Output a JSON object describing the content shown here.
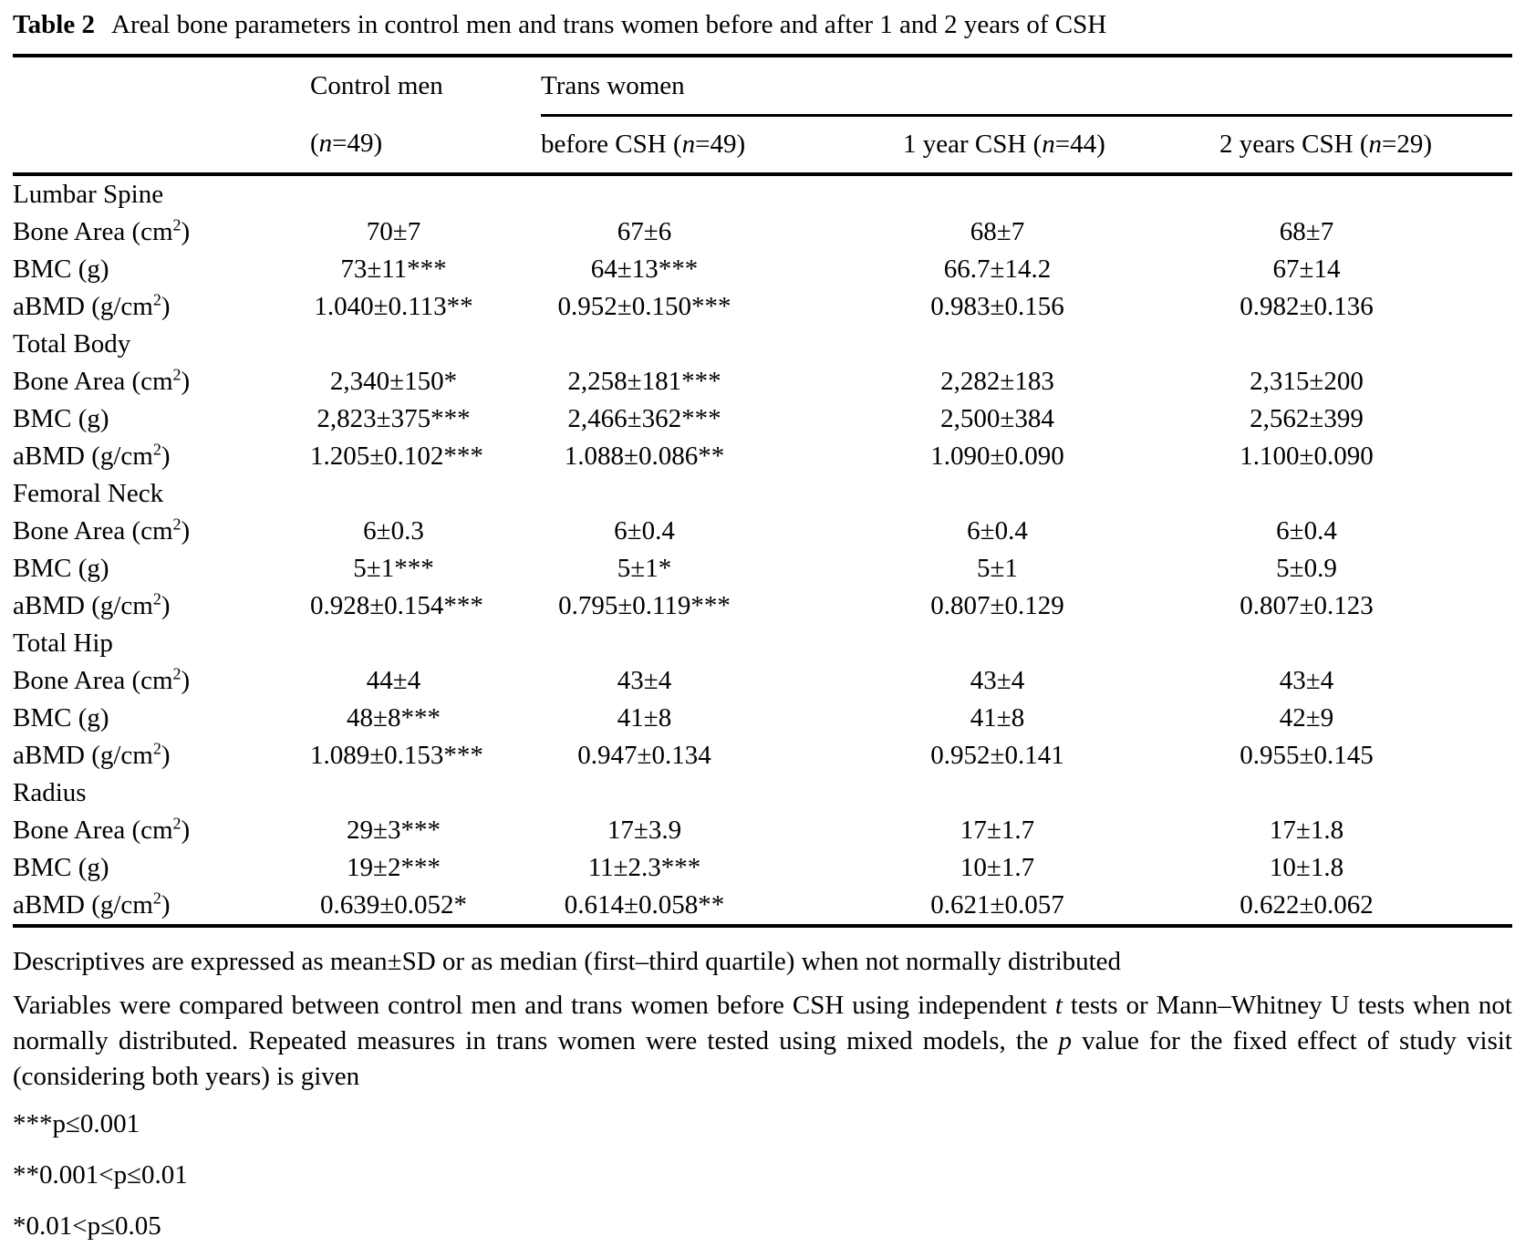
{
  "table_caption": {
    "label": "Table 2",
    "text": "Areal bone parameters in control men and trans women before and after 1 and 2 years of CSH"
  },
  "header": {
    "control_group": "Control men",
    "trans_group": "Trans women",
    "subheaders": [
      {
        "pre": "(",
        "italic": "n",
        "post": "=49)"
      },
      {
        "pre": "before CSH (",
        "italic": "n",
        "post": "=49)"
      },
      {
        "pre": "1 year CSH (",
        "italic": "n",
        "post": "=44)"
      },
      {
        "pre": "2 years CSH (",
        "italic": "n",
        "post": "=29)"
      }
    ]
  },
  "sections": [
    {
      "name": "Lumbar Spine",
      "rows": [
        {
          "label": {
            "pre": "Bone Area (cm",
            "sup": "2",
            "post": ")"
          },
          "values": [
            "70±7",
            "67±6",
            "68±7",
            "68±7"
          ]
        },
        {
          "label": {
            "pre": "BMC (g)",
            "sup": "",
            "post": ""
          },
          "values": [
            "73±11***",
            "64±13***",
            "66.7±14.2",
            "67±14"
          ]
        },
        {
          "label": {
            "pre": "aBMD (g/cm",
            "sup": "2",
            "post": ")"
          },
          "values": [
            "1.040±0.113**",
            "0.952±0.150***",
            "0.983±0.156",
            "0.982±0.136"
          ]
        }
      ]
    },
    {
      "name": "Total Body",
      "rows": [
        {
          "label": {
            "pre": "Bone Area (cm",
            "sup": "2",
            "post": ")"
          },
          "values": [
            "2,340±150*",
            "2,258±181***",
            "2,282±183",
            "2,315±200"
          ]
        },
        {
          "label": {
            "pre": "BMC (g)",
            "sup": "",
            "post": ""
          },
          "values": [
            "2,823±375***",
            "2,466±362***",
            "2,500±384",
            "2,562±399"
          ]
        },
        {
          "label": {
            "pre": "aBMD (g/cm",
            "sup": "2",
            "post": ")"
          },
          "values": [
            "1.205±0.102***",
            "1.088±0.086**",
            "1.090±0.090",
            "1.100±0.090"
          ]
        }
      ]
    },
    {
      "name": "Femoral Neck",
      "rows": [
        {
          "label": {
            "pre": "Bone Area (cm",
            "sup": "2",
            "post": ")"
          },
          "values": [
            "6±0.3",
            "6±0.4",
            "6±0.4",
            "6±0.4"
          ]
        },
        {
          "label": {
            "pre": "BMC (g)",
            "sup": "",
            "post": ""
          },
          "values": [
            "5±1***",
            "5±1*",
            "5±1",
            "5±0.9"
          ]
        },
        {
          "label": {
            "pre": "aBMD (g/cm",
            "sup": "2",
            "post": ")"
          },
          "values": [
            "0.928±0.154***",
            "0.795±0.119***",
            "0.807±0.129",
            "0.807±0.123"
          ]
        }
      ]
    },
    {
      "name": "Total Hip",
      "rows": [
        {
          "label": {
            "pre": "Bone Area (cm",
            "sup": "2",
            "post": ")"
          },
          "values": [
            "44±4",
            "43±4",
            "43±4",
            "43±4"
          ]
        },
        {
          "label": {
            "pre": "BMC (g)",
            "sup": "",
            "post": ""
          },
          "values": [
            "48±8***",
            "41±8",
            "41±8",
            "42±9"
          ]
        },
        {
          "label": {
            "pre": "aBMD (g/cm",
            "sup": "2",
            "post": ")"
          },
          "values": [
            "1.089±0.153***",
            "0.947±0.134",
            "0.952±0.141",
            "0.955±0.145"
          ]
        }
      ]
    },
    {
      "name": "Radius",
      "rows": [
        {
          "label": {
            "pre": "Bone Area (cm",
            "sup": "2",
            "post": ")"
          },
          "values": [
            "29±3***",
            "17±3.9",
            "17±1.7",
            "17±1.8"
          ]
        },
        {
          "label": {
            "pre": "BMC (g)",
            "sup": "",
            "post": ""
          },
          "values": [
            "19±2***",
            "11±2.3***",
            "10±1.7",
            "10±1.8"
          ]
        },
        {
          "label": {
            "pre": "aBMD (g/cm",
            "sup": "2",
            "post": ")"
          },
          "values": [
            "0.639±0.052*",
            "0.614±0.058**",
            "0.621±0.057",
            "0.622±0.062"
          ]
        }
      ]
    }
  ],
  "footnotes": {
    "descriptives": "Descriptives are expressed as mean±SD or as median (first–third quartile) when not normally distributed",
    "methods": {
      "part1": "Variables were compared between control men and trans women before CSH using independent ",
      "italic1": "t",
      "part2": " tests or Mann–Whitney U tests when not normally distributed. Repeated measures in trans women were tested using mixed models, the ",
      "italic2": "p",
      "part3": " value for the fixed effect of study visit (considering both years) is given"
    },
    "significance": [
      "***p≤0.001",
      "**0.001<p≤0.01",
      "*0.01<p≤0.05"
    ]
  }
}
